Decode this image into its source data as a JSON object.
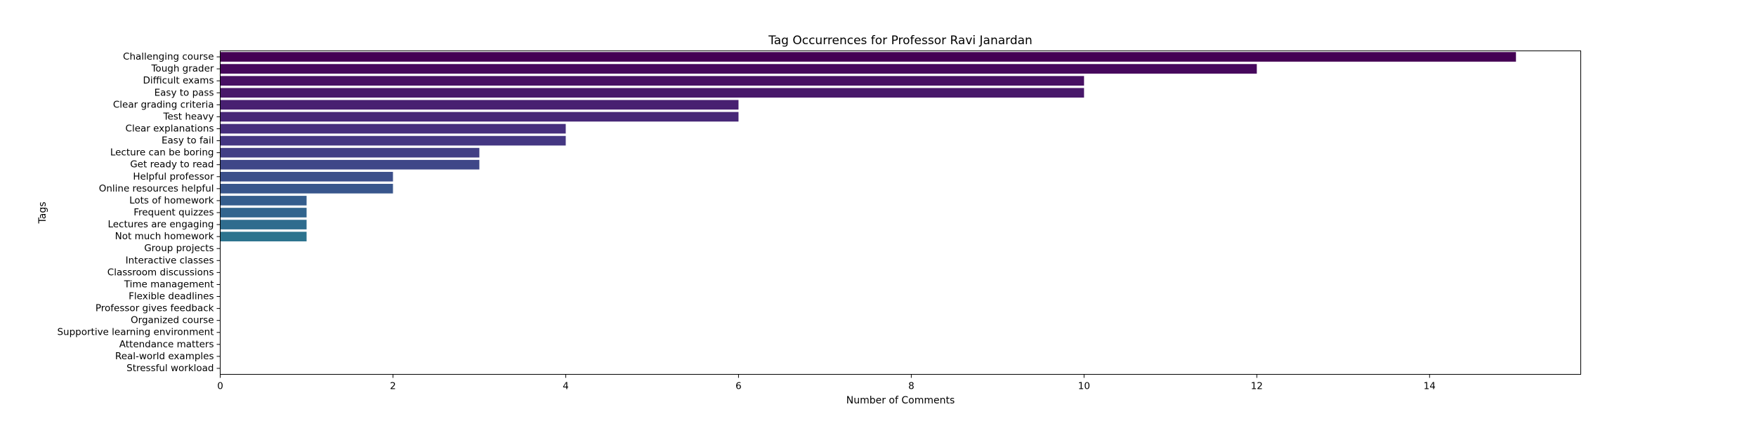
{
  "chart_data": {
    "type": "bar",
    "orientation": "horizontal",
    "title": "Tag Occurrences for Professor Ravi Janardan",
    "xlabel": "Number of Comments",
    "ylabel": "Tags",
    "xlim": [
      0,
      15.75
    ],
    "xticks": [
      0,
      2,
      4,
      6,
      8,
      10,
      12,
      14
    ],
    "grid": false,
    "legend": "none",
    "colormap": "viridis",
    "categories": [
      "Challenging course",
      "Tough grader",
      "Difficult exams",
      "Easy to pass",
      "Clear grading criteria",
      "Test heavy",
      "Clear explanations",
      "Easy to fail",
      "Lecture can be boring",
      "Get ready to read",
      "Helpful professor",
      "Online resources helpful",
      "Lots of homework",
      "Frequent quizzes",
      "Lectures are engaging",
      "Not much homework",
      "Group projects",
      "Interactive classes",
      "Classroom discussions",
      "Time management",
      "Flexible deadlines",
      "Professor gives feedback",
      "Organized course",
      "Supportive learning environment",
      "Attendance matters",
      "Real-world examples",
      "Stressful workload"
    ],
    "values": [
      15,
      12,
      10,
      10,
      6,
      6,
      4,
      4,
      3,
      3,
      2,
      2,
      1,
      1,
      1,
      1,
      0,
      0,
      0,
      0,
      0,
      0,
      0,
      0,
      0,
      0,
      0
    ],
    "colors": [
      "#440154",
      "#46085c",
      "#471063",
      "#48186a",
      "#482071",
      "#472777",
      "#462f7d",
      "#443782",
      "#423f85",
      "#3f4788",
      "#3c4f8a",
      "#39568c",
      "#355e8d",
      "#32658e",
      "#2f6c8e",
      "#2c738e",
      "#2a798e",
      "#27808e",
      "#25868e",
      "#228d8d",
      "#20938c",
      "#1f9a8a",
      "#20a087",
      "#24a684",
      "#2bac80",
      "#35b27b",
      "#42b875"
    ]
  }
}
